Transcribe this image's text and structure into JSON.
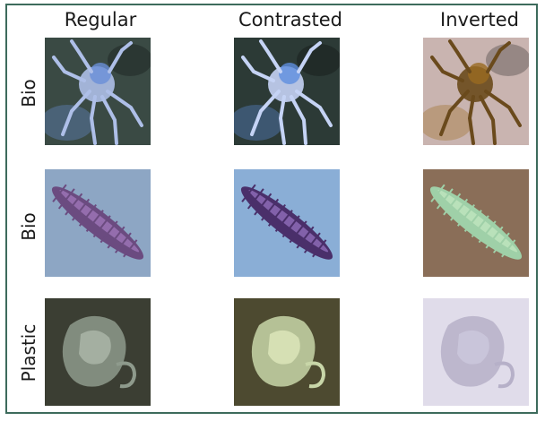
{
  "columns": [
    "Regular",
    "Contrasted",
    "Inverted"
  ],
  "rows": [
    {
      "label": "Bio",
      "subject": "crab",
      "images": [
        {
          "variant": "regular",
          "bg": "#3a4a44",
          "body": "#aebfe8",
          "accent": "#6a8fd8"
        },
        {
          "variant": "contrasted",
          "bg": "#2c3a36",
          "body": "#c5d3f5",
          "accent": "#5f8ee0"
        },
        {
          "variant": "inverted",
          "bg": "#c9b4b0",
          "body": "#6a4a1c",
          "accent": "#9a6a20"
        }
      ]
    },
    {
      "label": "Bio",
      "subject": "worm",
      "images": [
        {
          "variant": "regular",
          "bg": "#8da6c4",
          "body": "#6b4b80",
          "accent": "#a57cc0"
        },
        {
          "variant": "contrasted",
          "bg": "#8aaed6",
          "body": "#4a2f6a",
          "accent": "#9a76c6"
        },
        {
          "variant": "inverted",
          "bg": "#8a6e58",
          "body": "#9fd0a8",
          "accent": "#c4e8c2"
        }
      ]
    },
    {
      "label": "Plastic",
      "subject": "plastic",
      "images": [
        {
          "variant": "regular",
          "bg": "#3b3e33",
          "body": "#8e9a8c",
          "accent": "#b4beb0"
        },
        {
          "variant": "contrasted",
          "bg": "#4d4a30",
          "body": "#c8d6a8",
          "accent": "#e4ecc0"
        },
        {
          "variant": "inverted",
          "bg": "#e0dcea",
          "body": "#b6b0c8",
          "accent": "#cfcadf"
        }
      ]
    }
  ]
}
